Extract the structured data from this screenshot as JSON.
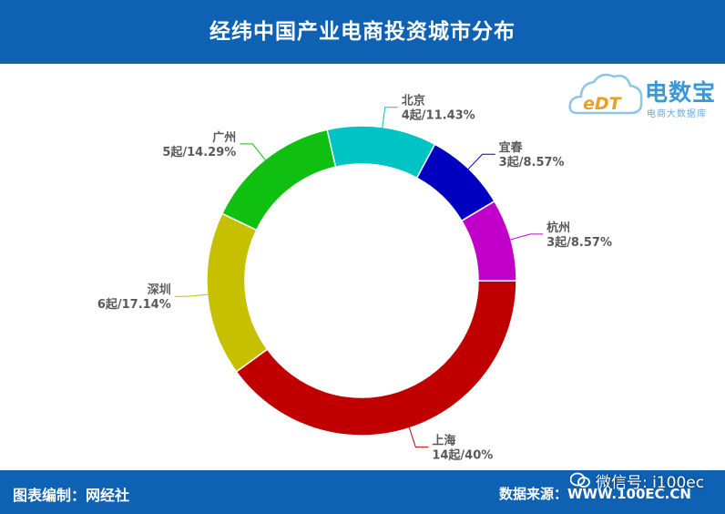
{
  "header": {
    "title": "经纬中国产业电商投资城市分布"
  },
  "logo": {
    "name": "电数宝",
    "sub": "电商大数据库",
    "badge": "eDT"
  },
  "footer": {
    "left": "图表编制：网经社",
    "right": "数据来源：WWW.100EC.CN",
    "wechat": "微信号: i100ec"
  },
  "colors": {
    "header_bg": "#0f62b3",
    "logo": "#3a98d8"
  },
  "chart_data": {
    "type": "pie",
    "donut": true,
    "title": "经纬中国产业电商投资城市分布",
    "categories": [
      "上海",
      "深圳",
      "广州",
      "北京",
      "宜春",
      "杭州"
    ],
    "values": [
      14,
      6,
      5,
      4,
      3,
      3
    ],
    "value_labels": [
      "14起/40%",
      "6起/17.14%",
      "5起/14.29%",
      "4起/11.43%",
      "3起/8.57%",
      "3起/8.57%"
    ],
    "percent": [
      40,
      17.14,
      14.29,
      11.43,
      8.57,
      8.57
    ],
    "colors": [
      "#c00000",
      "#c6c000",
      "#10c010",
      "#00c4c4",
      "#0000c0",
      "#c000c8"
    ],
    "legend": "none"
  }
}
